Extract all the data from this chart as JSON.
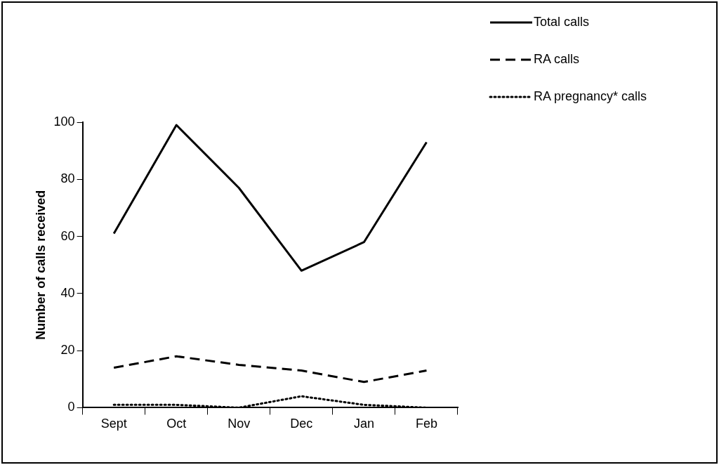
{
  "chart_data": {
    "type": "line",
    "ylabel": "Number of calls received",
    "categories": [
      "Sept",
      "Oct",
      "Nov",
      "Dec",
      "Jan",
      "Feb"
    ],
    "series": [
      {
        "name": "Total calls",
        "color": "#000000",
        "line_style": "solid",
        "values": [
          61,
          99,
          77,
          48,
          58,
          93
        ]
      },
      {
        "name": "RA calls",
        "color": "#000000",
        "line_style": "dashed",
        "values": [
          14,
          18,
          15,
          13,
          9,
          13
        ]
      },
      {
        "name": "RA pregnancy* calls",
        "color": "#000000",
        "line_style": "dotted",
        "values": [
          1,
          1,
          0,
          4,
          1,
          0
        ]
      }
    ],
    "ylim": [
      0,
      100
    ],
    "yticks": [
      0,
      20,
      40,
      60,
      80,
      100
    ],
    "grid": false,
    "legend": "top right",
    "marker": "none"
  }
}
